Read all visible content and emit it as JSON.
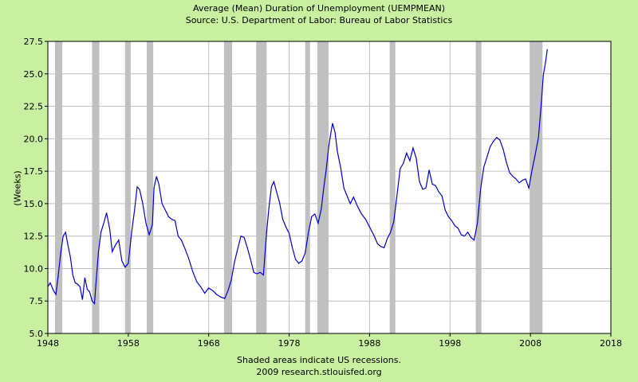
{
  "chart_data": {
    "type": "line",
    "title": "Average (Mean) Duration of Unemployment (UEMPMEAN)",
    "subtitle": "Source: U.S. Department of Labor: Bureau of Labor Statistics",
    "ylabel": "(Weeks)",
    "xlabel": "",
    "xlim": [
      1948,
      2018
    ],
    "ylim": [
      5.0,
      27.5
    ],
    "grid": true,
    "x_ticks": [
      "1948",
      "1958",
      "1968",
      "1978",
      "1988",
      "1998",
      "2008",
      "2018"
    ],
    "y_ticks": [
      "5.0",
      "7.5",
      "10.0",
      "12.5",
      "15.0",
      "17.5",
      "20.0",
      "22.5",
      "25.0",
      "27.5"
    ],
    "series": [
      {
        "color": "#0000cc",
        "x": [
          1948.0,
          1948.3,
          1948.7,
          1949.0,
          1949.3,
          1949.6,
          1949.9,
          1950.2,
          1950.5,
          1950.8,
          1951.1,
          1951.4,
          1951.7,
          1952.0,
          1952.3,
          1952.6,
          1952.9,
          1953.2,
          1953.5,
          1953.8,
          1954.0,
          1954.3,
          1954.6,
          1955.0,
          1955.3,
          1955.7,
          1956.0,
          1956.4,
          1956.8,
          1957.2,
          1957.6,
          1958.0,
          1958.4,
          1958.8,
          1959.1,
          1959.4,
          1959.8,
          1960.2,
          1960.6,
          1961.0,
          1961.2,
          1961.5,
          1961.8,
          1962.2,
          1962.6,
          1963.0,
          1963.4,
          1963.8,
          1964.2,
          1964.6,
          1965.0,
          1965.5,
          1966.0,
          1966.5,
          1967.0,
          1967.5,
          1968.0,
          1968.5,
          1969.0,
          1969.5,
          1970.0,
          1970.4,
          1970.8,
          1971.2,
          1971.6,
          1972.0,
          1972.4,
          1972.8,
          1973.2,
          1973.6,
          1974.0,
          1974.4,
          1974.8,
          1975.2,
          1975.5,
          1975.8,
          1976.1,
          1976.4,
          1976.8,
          1977.2,
          1977.6,
          1978.0,
          1978.4,
          1978.8,
          1979.2,
          1979.6,
          1980.0,
          1980.4,
          1980.8,
          1981.2,
          1981.6,
          1982.0,
          1982.3,
          1982.6,
          1982.9,
          1983.2,
          1983.4,
          1983.7,
          1984.0,
          1984.4,
          1984.8,
          1985.2,
          1985.6,
          1986.0,
          1986.5,
          1987.0,
          1987.5,
          1988.0,
          1988.5,
          1989.0,
          1989.4,
          1989.8,
          1990.2,
          1990.6,
          1991.0,
          1991.4,
          1991.8,
          1992.2,
          1992.6,
          1993.0,
          1993.4,
          1993.8,
          1994.2,
          1994.6,
          1995.0,
          1995.4,
          1995.8,
          1996.2,
          1996.6,
          1997.0,
          1997.4,
          1997.8,
          1998.2,
          1998.6,
          1999.0,
          1999.4,
          1999.8,
          2000.2,
          2000.6,
          2001.0,
          2001.4,
          2001.8,
          2002.2,
          2002.6,
          2003.0,
          2003.4,
          2003.8,
          2004.2,
          2004.6,
          2005.0,
          2005.4,
          2005.8,
          2006.2,
          2006.6,
          2007.0,
          2007.4,
          2007.8,
          2008.2,
          2008.6,
          2009.0,
          2009.3,
          2009.6,
          2009.9,
          2010.1
        ],
        "values": [
          8.6,
          8.9,
          8.3,
          8.0,
          9.5,
          11.2,
          12.5,
          12.8,
          11.8,
          10.9,
          9.5,
          8.9,
          8.8,
          8.6,
          7.6,
          9.3,
          8.4,
          8.2,
          7.5,
          7.3,
          9.0,
          11.3,
          12.8,
          13.6,
          14.3,
          13.0,
          11.3,
          11.8,
          12.2,
          10.6,
          10.1,
          10.4,
          12.7,
          14.6,
          16.3,
          16.1,
          15.0,
          13.5,
          12.6,
          13.4,
          16.2,
          17.1,
          16.5,
          15.0,
          14.5,
          14.0,
          13.8,
          13.7,
          12.5,
          12.2,
          11.6,
          10.8,
          9.8,
          9.0,
          8.6,
          8.1,
          8.5,
          8.3,
          8.0,
          7.8,
          7.7,
          8.3,
          9.1,
          10.5,
          11.5,
          12.5,
          12.4,
          11.6,
          10.7,
          9.7,
          9.6,
          9.7,
          9.5,
          12.8,
          14.8,
          16.3,
          16.7,
          16.0,
          15.1,
          13.8,
          13.2,
          12.7,
          11.6,
          10.7,
          10.4,
          10.6,
          11.2,
          12.8,
          14.0,
          14.2,
          13.5,
          14.6,
          16.2,
          17.6,
          19.3,
          20.5,
          21.2,
          20.5,
          19.0,
          17.8,
          16.2,
          15.6,
          15.0,
          15.5,
          14.8,
          14.2,
          13.8,
          13.2,
          12.6,
          11.9,
          11.7,
          11.6,
          12.3,
          12.8,
          13.6,
          15.6,
          17.7,
          18.1,
          18.9,
          18.3,
          19.3,
          18.5,
          16.7,
          16.1,
          16.2,
          17.6,
          16.5,
          16.4,
          15.9,
          15.6,
          14.5,
          14.0,
          13.7,
          13.3,
          13.1,
          12.6,
          12.5,
          12.8,
          12.4,
          12.2,
          13.5,
          16.1,
          17.8,
          18.6,
          19.4,
          19.8,
          20.1,
          19.9,
          19.2,
          18.2,
          17.4,
          17.1,
          16.9,
          16.6,
          16.8,
          16.9,
          16.2,
          17.6,
          18.8,
          20.1,
          22.4,
          24.9,
          26.0,
          26.9
        ]
      }
    ],
    "recession_bands": [
      [
        1948.9,
        1949.8
      ],
      [
        1953.5,
        1954.4
      ],
      [
        1957.6,
        1958.3
      ],
      [
        1960.3,
        1961.1
      ],
      [
        1969.9,
        1970.9
      ],
      [
        1973.9,
        1975.2
      ],
      [
        1980.0,
        1980.6
      ],
      [
        1981.5,
        1982.9
      ],
      [
        1990.5,
        1991.2
      ],
      [
        2001.2,
        2001.9
      ],
      [
        2007.9,
        2009.5
      ]
    ],
    "colors": {
      "background": "#c8f0a0",
      "plot_area": "#ffffff",
      "grid": "#c0c0c0",
      "recession": "#c0c0c0",
      "line": "#0000cc"
    }
  },
  "footer": {
    "note": "Shaded areas indicate US recessions.",
    "credit": "2009 research.stlouisfed.org"
  }
}
